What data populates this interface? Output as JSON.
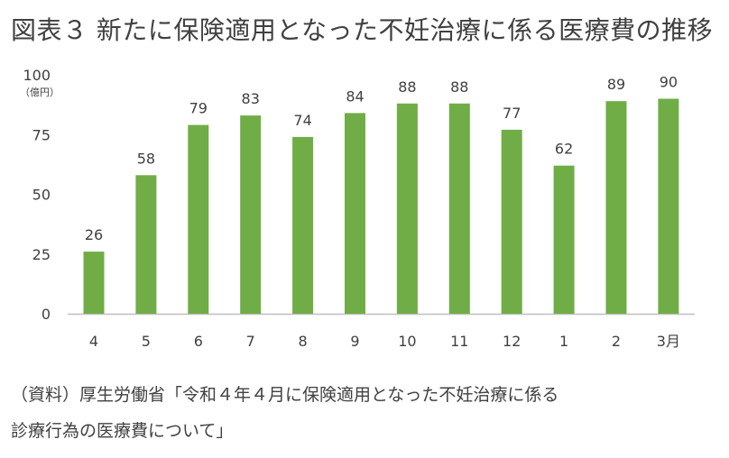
{
  "title": "図表３ 新たに保険適用となった不妊治療に係る医療費の推移",
  "source": {
    "line1": "（資料）厚生労働省「令和４年４月に保険適用となった不妊治療に係る",
    "line2": "診療行為の医療費について」"
  },
  "colors": {
    "bar": "#70ad47",
    "axis": "#bfbfbf",
    "text": "#404040"
  },
  "chart_data": {
    "type": "bar",
    "unit": "（億円）",
    "categories": [
      "4",
      "5",
      "6",
      "7",
      "8",
      "9",
      "10",
      "11",
      "12",
      "1",
      "2",
      "3月"
    ],
    "values": [
      26,
      58,
      79,
      83,
      74,
      84,
      88,
      88,
      77,
      62,
      89,
      90
    ],
    "y_ticks": [
      0,
      25,
      50,
      75,
      100
    ],
    "ylim": [
      0,
      100
    ],
    "grid": false,
    "legend": "none"
  }
}
